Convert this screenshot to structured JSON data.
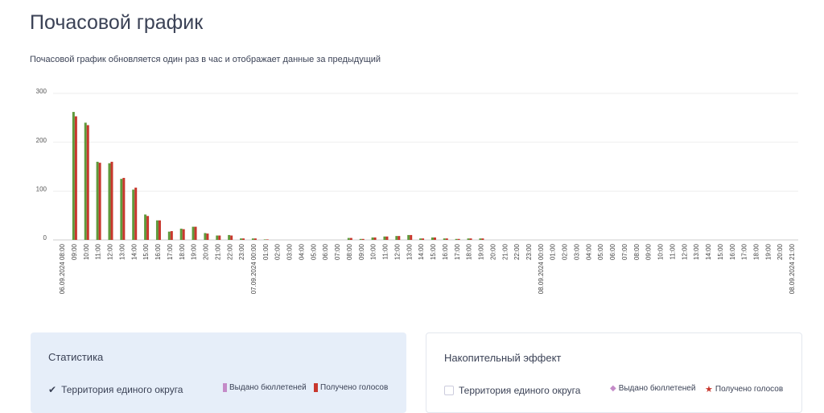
{
  "header": {
    "title": "Почасовой график",
    "subtitle": "Почасовой график обновляется один раз в час и отображает данные за предыдущий"
  },
  "chart_data": {
    "type": "bar",
    "categories": [
      "06.09.2024 08:00",
      "09:00",
      "10:00",
      "11:00",
      "12:00",
      "13:00",
      "14:00",
      "15:00",
      "16:00",
      "17:00",
      "18:00",
      "19:00",
      "20:00",
      "21:00",
      "22:00",
      "23:00",
      "07.09.2024 00:00",
      "01:00",
      "02:00",
      "03:00",
      "04:00",
      "05:00",
      "06:00",
      "07:00",
      "08:00",
      "09:00",
      "10:00",
      "11:00",
      "12:00",
      "13:00",
      "14:00",
      "15:00",
      "16:00",
      "17:00",
      "18:00",
      "19:00",
      "20:00",
      "21:00",
      "22:00",
      "23:00",
      "08.09.2024 00:00",
      "01:00",
      "02:00",
      "03:00",
      "04:00",
      "05:00",
      "06:00",
      "07:00",
      "08:00",
      "09:00",
      "10:00",
      "11:00",
      "12:00",
      "13:00",
      "14:00",
      "15:00",
      "16:00",
      "17:00",
      "18:00",
      "19:00",
      "20:00",
      "08.09.2024 21:00"
    ],
    "series": [
      {
        "name": "Выдано бюллетеней",
        "color": "#5f9a3c",
        "values": [
          0,
          262,
          240,
          160,
          157,
          125,
          103,
          52,
          40,
          17,
          23,
          27,
          14,
          9,
          10,
          3,
          3,
          1,
          0,
          0,
          0,
          0,
          0,
          0,
          4,
          2,
          5,
          7,
          8,
          10,
          3,
          5,
          3,
          2,
          3,
          3,
          0,
          0,
          0,
          0,
          0,
          0,
          0,
          0,
          0,
          0,
          0,
          0,
          0,
          0,
          0,
          0,
          0,
          0,
          0,
          0,
          0,
          0,
          0,
          0,
          0,
          0
        ]
      },
      {
        "name": "Получено голосов",
        "color": "#c8372d",
        "values": [
          0,
          253,
          235,
          158,
          160,
          127,
          107,
          49,
          40,
          18,
          22,
          27,
          13,
          9,
          9,
          3,
          3,
          1,
          0,
          0,
          0,
          0,
          0,
          0,
          4,
          2,
          5,
          7,
          8,
          10,
          3,
          5,
          3,
          2,
          3,
          3,
          0,
          0,
          0,
          0,
          0,
          0,
          0,
          0,
          0,
          0,
          0,
          0,
          0,
          0,
          0,
          0,
          0,
          0,
          0,
          0,
          0,
          0,
          0,
          0,
          0,
          0
        ]
      }
    ],
    "ylim": [
      0,
      300
    ],
    "yticks": [
      0,
      100,
      200,
      300
    ],
    "grid": true
  },
  "panels": [
    {
      "title": "Статистика",
      "checkbox": "Территория единого округа"
    },
    {
      "title": "Накопительный эффект",
      "checkbox": "Территория единого округа"
    }
  ]
}
